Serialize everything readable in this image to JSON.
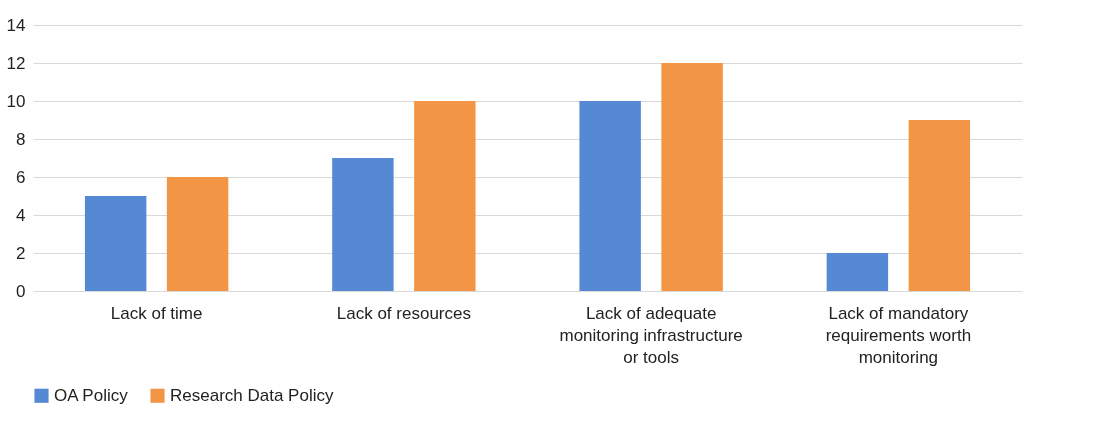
{
  "chart_data": {
    "type": "bar",
    "categories": [
      "Lack of time",
      "Lack of resources",
      "Lack of adequate monitoring infrastructure or tools",
      "Lack of mandatory requirements worth monitoring"
    ],
    "series": [
      {
        "name": "OA Policy",
        "color": "#5589d4",
        "values": [
          5,
          7,
          10,
          2
        ]
      },
      {
        "name": "Research Data Policy",
        "color": "#f29645",
        "values": [
          6,
          10,
          12,
          9
        ]
      }
    ],
    "ylim": [
      0,
      14
    ],
    "yticks": [
      0,
      2,
      4,
      6,
      8,
      10,
      12,
      14
    ],
    "grid": "y",
    "legend": "bottom"
  }
}
